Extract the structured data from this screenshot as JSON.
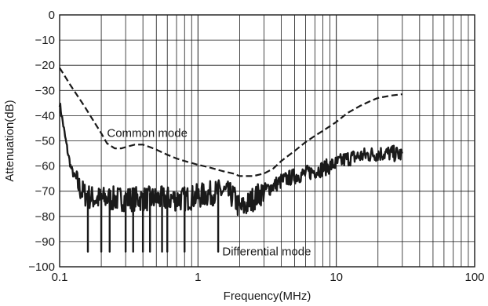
{
  "chart_data": {
    "type": "line",
    "title": "",
    "xlabel": "Frequency(MHz)",
    "ylabel": "Attenuation(dB)",
    "x_scale": "log",
    "xlim": [
      0.1,
      100
    ],
    "ylim": [
      -100,
      0
    ],
    "grid": true,
    "colors": {
      "line": "#1a1a1a",
      "grid": "#1a1a1a",
      "background": "#ffffff"
    },
    "x_ticks": [
      {
        "value": 0.1,
        "label": "0.1"
      },
      {
        "value": 1,
        "label": "1"
      },
      {
        "value": 10,
        "label": "10"
      },
      {
        "value": 100,
        "label": "100"
      }
    ],
    "y_ticks": [
      {
        "value": 0,
        "label": "0"
      },
      {
        "value": -10,
        "label": "−10"
      },
      {
        "value": -20,
        "label": "−20"
      },
      {
        "value": -30,
        "label": "−30"
      },
      {
        "value": -40,
        "label": "−40"
      },
      {
        "value": -50,
        "label": "−50"
      },
      {
        "value": -60,
        "label": "−60"
      },
      {
        "value": -70,
        "label": "−70"
      },
      {
        "value": -80,
        "label": "−80"
      },
      {
        "value": -90,
        "label": "−90"
      },
      {
        "value": -100,
        "label": "−100"
      }
    ],
    "series": [
      {
        "name": "Common mode",
        "style": "dashed",
        "x": [
          0.1,
          0.12,
          0.15,
          0.18,
          0.2,
          0.22,
          0.25,
          0.28,
          0.3,
          0.35,
          0.4,
          0.45,
          0.5,
          0.6,
          0.7,
          0.8,
          1.0,
          1.2,
          1.5,
          1.8,
          2.0,
          2.5,
          3.0,
          3.5,
          4.0,
          5.0,
          6.0,
          7.0,
          8.0,
          10,
          12,
          15,
          18,
          20,
          25,
          30
        ],
        "y": [
          -21,
          -28,
          -36,
          -43,
          -47,
          -51,
          -53,
          -53,
          -52.5,
          -51.5,
          -51.5,
          -52.5,
          -53.5,
          -55.5,
          -57,
          -58,
          -59.5,
          -60.5,
          -62,
          -63,
          -64,
          -64,
          -63,
          -61,
          -58,
          -54,
          -50.5,
          -48,
          -46,
          -42.5,
          -39,
          -36,
          -34,
          -33,
          -32,
          -31.5
        ]
      },
      {
        "name": "Differential mode",
        "style": "solid",
        "noisy": true,
        "x": [
          0.1,
          0.105,
          0.11,
          0.115,
          0.12,
          0.125,
          0.13,
          0.14,
          0.15,
          0.16,
          0.18,
          0.2,
          0.25,
          0.3,
          0.4,
          0.5,
          0.6,
          0.8,
          1.0,
          1.2,
          1.5,
          1.8,
          2.0,
          2.2,
          2.5,
          3.0,
          4.0,
          5.0,
          6.0,
          8.0,
          10,
          12,
          15,
          20,
          25,
          30
        ],
        "y": [
          -35,
          -42,
          -49,
          -55,
          -60,
          -63,
          -65,
          -69,
          -71,
          -72,
          -73,
          -73,
          -73,
          -73,
          -73,
          -73,
          -73,
          -73,
          -72,
          -71,
          -70,
          -72,
          -77,
          -76,
          -73,
          -70,
          -66,
          -64,
          -63,
          -61,
          -59,
          -57,
          -56,
          -55,
          -55,
          -55.5
        ]
      }
    ],
    "spikes": {
      "name": "Differential mode",
      "bottom_x": [
        0.16,
        0.2,
        0.23,
        0.3,
        0.34,
        0.4,
        0.45,
        0.55,
        0.6,
        0.8,
        1.4
      ],
      "bottom_y": -94
    },
    "annotations": [
      {
        "text": "Common mode",
        "x": 0.22,
        "y": -48.5
      },
      {
        "text": "Differential mode",
        "x": 1.5,
        "y": -95.5
      }
    ]
  }
}
